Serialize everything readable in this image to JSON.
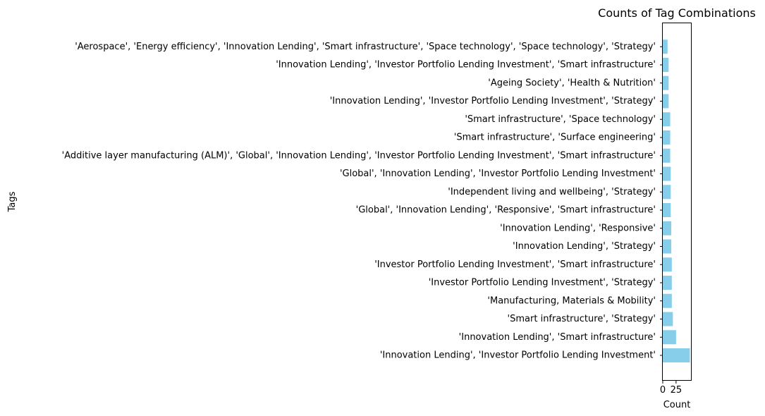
{
  "chart_data": {
    "type": "bar",
    "orientation": "horizontal",
    "title": "Counts of Tag Combinations",
    "xlabel": "Count",
    "ylabel": "Tags",
    "xlim": [
      0,
      53
    ],
    "xticks": [
      0,
      25
    ],
    "xtick_labels": [
      "0",
      "25"
    ],
    "grid": false,
    "bar_color": "#87ceeb",
    "categories": [
      "'Innovation Lending', 'Investor Portfolio Lending Investment'",
      "'Innovation Lending', 'Smart infrastructure'",
      "'Smart infrastructure', 'Strategy'",
      "'Manufacturing, Materials & Mobility'",
      "'Investor Portfolio Lending Investment', 'Strategy'",
      "'Investor Portfolio Lending Investment', 'Smart infrastructure'",
      "'Innovation Lending', 'Strategy'",
      "'Innovation Lending', 'Responsive'",
      "'Global', 'Innovation Lending', 'Responsive', 'Smart infrastructure'",
      "'Independent living and wellbeing', 'Strategy'",
      "'Global', 'Innovation Lending', 'Investor Portfolio Lending Investment'",
      "'Additive layer manufacturing (ALM)', 'Global', 'Innovation Lending', 'Investor Portfolio Lending Investment', 'Smart infrastructure'",
      "'Smart infrastructure', 'Surface engineering'",
      "'Smart infrastructure', 'Space technology'",
      "'Innovation Lending', 'Investor Portfolio Lending Investment', 'Strategy'",
      "'Ageing Society', 'Health & Nutrition'",
      "'Innovation Lending', 'Investor Portfolio Lending Investment', 'Smart infrastructure'",
      "'Aerospace', 'Energy efficiency', 'Innovation Lending', 'Smart infrastructure', 'Space technology', 'Space technology', 'Strategy'"
    ],
    "values": [
      51,
      25,
      19,
      17,
      17,
      17,
      16,
      16,
      15,
      15,
      15,
      14,
      14,
      14,
      11,
      11,
      11,
      9
    ]
  }
}
